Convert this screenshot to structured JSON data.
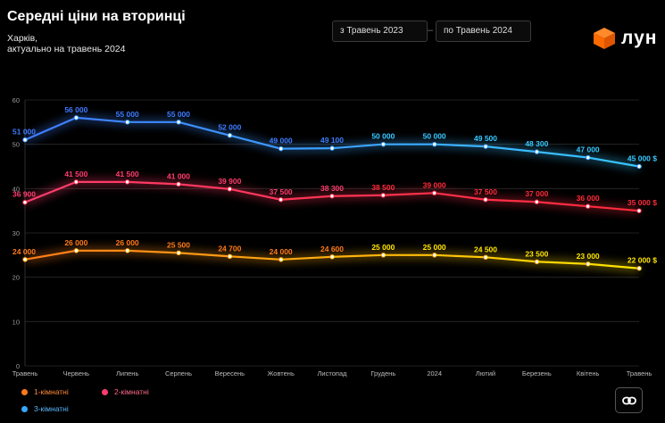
{
  "header": {
    "title": "Середні ціни на вторинці",
    "subtitle_line1": "Харків,",
    "subtitle_line2": "актуально на травень 2024"
  },
  "date_range": {
    "from_label": "з  Травень 2023",
    "separator": "–",
    "to_label": "по  Травень 2024"
  },
  "brand": {
    "name": "лун",
    "color": "#ff6a00"
  },
  "link_button": {
    "icon": "link-icon"
  },
  "chart_data": {
    "type": "line",
    "categories": [
      "Травень",
      "Червень",
      "Липень",
      "Серпень",
      "Вересень",
      "Жовтень",
      "Листопад",
      "Грудень",
      "2024",
      "Лютий",
      "Березень",
      "Квітень",
      "Травень"
    ],
    "ylim": [
      0,
      60
    ],
    "yticks": [
      0,
      10,
      20,
      30,
      40,
      50,
      60
    ],
    "grid": true,
    "legend_position": "bottom-left",
    "series": [
      {
        "name": "1-кімнатні",
        "values": [
          24000,
          26000,
          26000,
          25500,
          24700,
          24000,
          24600,
          25000,
          25000,
          24500,
          23500,
          23000,
          22000
        ],
        "labels": [
          "24 000",
          "26 000",
          "26 000",
          "25 500",
          "24 700",
          "24 000",
          "24 600",
          "25 000",
          "25 000",
          "24 500",
          "23 500",
          "23 000",
          "22 000 $"
        ],
        "color_start": "#ff7a1a",
        "color_end": "#ffe600"
      },
      {
        "name": "2-кімнатні",
        "values": [
          36900,
          41500,
          41500,
          41000,
          39900,
          37500,
          38300,
          38500,
          39000,
          37500,
          37000,
          36000,
          35000
        ],
        "labels": [
          "36 900",
          "41 500",
          "41 500",
          "41 000",
          "39 900",
          "37 500",
          "38 300",
          "38 500",
          "39 000",
          "37 500",
          "37 000",
          "36 000",
          "35 000 $"
        ],
        "color_start": "#ff3d6e",
        "color_end": "#ff2a3a"
      },
      {
        "name": "3-кімнатні",
        "values": [
          51000,
          56000,
          55000,
          55000,
          52000,
          49000,
          49100,
          50000,
          50000,
          49500,
          48300,
          47000,
          45000
        ],
        "labels": [
          "51 000",
          "56 000",
          "55 000",
          "55 000",
          "52 000",
          "49 000",
          "49 100",
          "50 000",
          "50 000",
          "49 500",
          "48 300",
          "47 000",
          "45 000 $"
        ],
        "color_start": "#3f7bff",
        "color_end": "#38c8ff"
      }
    ]
  }
}
